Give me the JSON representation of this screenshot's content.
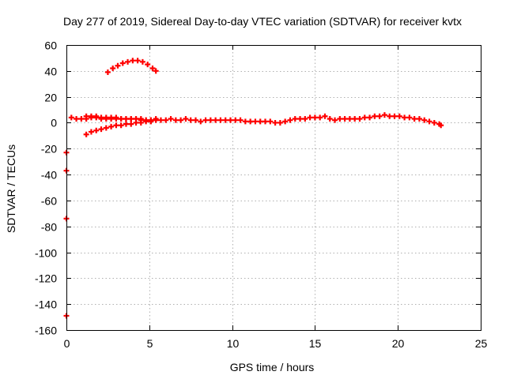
{
  "chart_data": {
    "type": "scatter",
    "title": "Day 277 of 2019, Sidereal Day-to-day VTEC variation (SDTVAR) for receiver kvtx",
    "xlabel": "GPS time / hours",
    "ylabel": "SDTVAR / TECUs",
    "xlim": [
      0,
      25
    ],
    "ylim": [
      -160,
      60
    ],
    "x_ticks": [
      0,
      5,
      10,
      15,
      20,
      25
    ],
    "y_ticks": [
      60,
      40,
      20,
      0,
      -20,
      -40,
      -60,
      -80,
      -100,
      -120,
      -140,
      -160
    ],
    "x_tick_labels": [
      "0",
      "5",
      "10",
      "15",
      "20",
      "25"
    ],
    "y_tick_labels": [
      "60",
      "40",
      "20",
      "0",
      "-20",
      "-40",
      "-60",
      "-80",
      "-100",
      "-120",
      "-140",
      "-160"
    ],
    "grid": true,
    "series_color": "#ff0000",
    "series": [
      {
        "values": [
          [
            0.3,
            4
          ],
          [
            0.6,
            3
          ],
          [
            0.9,
            3
          ],
          [
            1.2,
            3
          ],
          [
            1.5,
            4
          ],
          [
            1.8,
            4
          ],
          [
            2.1,
            3
          ],
          [
            2.4,
            3
          ],
          [
            2.7,
            3
          ],
          [
            3.0,
            3
          ],
          [
            3.3,
            3
          ],
          [
            3.6,
            3
          ],
          [
            3.9,
            3
          ],
          [
            4.2,
            3
          ],
          [
            4.5,
            3
          ],
          [
            4.8,
            2
          ],
          [
            5.1,
            2
          ],
          [
            5.4,
            3
          ],
          [
            5.7,
            2
          ],
          [
            6.0,
            2
          ],
          [
            6.3,
            3
          ],
          [
            6.6,
            2
          ],
          [
            6.9,
            2
          ],
          [
            7.2,
            3
          ],
          [
            7.5,
            2
          ],
          [
            7.8,
            2
          ],
          [
            8.1,
            1
          ],
          [
            8.4,
            2
          ],
          [
            8.7,
            2
          ],
          [
            9.0,
            2
          ],
          [
            9.3,
            2
          ],
          [
            9.6,
            2
          ],
          [
            9.9,
            2
          ],
          [
            10.2,
            2
          ],
          [
            10.5,
            2
          ],
          [
            10.8,
            1
          ],
          [
            11.1,
            1
          ],
          [
            11.4,
            1
          ],
          [
            11.7,
            1
          ],
          [
            12.0,
            1
          ],
          [
            12.3,
            1
          ],
          [
            12.6,
            0
          ],
          [
            12.9,
            0
          ],
          [
            13.2,
            1
          ],
          [
            13.5,
            2
          ],
          [
            13.8,
            3
          ],
          [
            14.1,
            3
          ],
          [
            14.4,
            3
          ],
          [
            14.7,
            4
          ],
          [
            15.0,
            4
          ],
          [
            15.3,
            4
          ],
          [
            15.6,
            5
          ],
          [
            15.9,
            3
          ],
          [
            16.2,
            2
          ],
          [
            16.5,
            3
          ],
          [
            16.8,
            3
          ],
          [
            17.1,
            3
          ],
          [
            17.4,
            3
          ],
          [
            17.7,
            3
          ],
          [
            18.0,
            4
          ],
          [
            18.3,
            4
          ],
          [
            18.6,
            5
          ],
          [
            18.9,
            5
          ],
          [
            19.2,
            6
          ],
          [
            19.5,
            5
          ],
          [
            19.8,
            5
          ],
          [
            20.1,
            5
          ],
          [
            20.4,
            4
          ],
          [
            20.7,
            4
          ],
          [
            21.0,
            3
          ],
          [
            21.3,
            3
          ],
          [
            21.6,
            2
          ],
          [
            21.9,
            1
          ],
          [
            22.2,
            0
          ],
          [
            22.5,
            -1
          ],
          [
            22.6,
            -2
          ]
        ]
      },
      {
        "values": [
          [
            1.2,
            5
          ],
          [
            1.5,
            5
          ],
          [
            1.8,
            5
          ],
          [
            2.1,
            4
          ],
          [
            2.4,
            4
          ],
          [
            2.7,
            4
          ],
          [
            3.0,
            4
          ],
          [
            3.3,
            3
          ],
          [
            3.6,
            3
          ],
          [
            3.9,
            3
          ],
          [
            4.2,
            3
          ],
          [
            4.5,
            2
          ],
          [
            4.8,
            2
          ],
          [
            5.1,
            2
          ],
          [
            5.4,
            2
          ]
        ]
      },
      {
        "values": [
          [
            1.2,
            -9
          ],
          [
            1.5,
            -7
          ],
          [
            1.8,
            -6
          ],
          [
            2.1,
            -5
          ],
          [
            2.4,
            -4
          ],
          [
            2.7,
            -3
          ],
          [
            3.0,
            -2
          ],
          [
            3.3,
            -2
          ],
          [
            3.6,
            -1
          ],
          [
            3.9,
            -1
          ],
          [
            4.2,
            0
          ],
          [
            4.5,
            0
          ],
          [
            4.8,
            1
          ],
          [
            5.1,
            1
          ]
        ]
      },
      {
        "values": [
          [
            2.5,
            39
          ],
          [
            2.8,
            42
          ],
          [
            3.1,
            44
          ],
          [
            3.4,
            46
          ],
          [
            3.7,
            47
          ],
          [
            4.0,
            48
          ],
          [
            4.3,
            48
          ],
          [
            4.6,
            47
          ],
          [
            4.9,
            45
          ],
          [
            5.2,
            42
          ],
          [
            5.4,
            40
          ]
        ]
      },
      {
        "values": [
          [
            0.0,
            -23
          ],
          [
            0.0,
            -37
          ],
          [
            0.0,
            -74
          ],
          [
            0.0,
            -149
          ]
        ]
      }
    ]
  }
}
